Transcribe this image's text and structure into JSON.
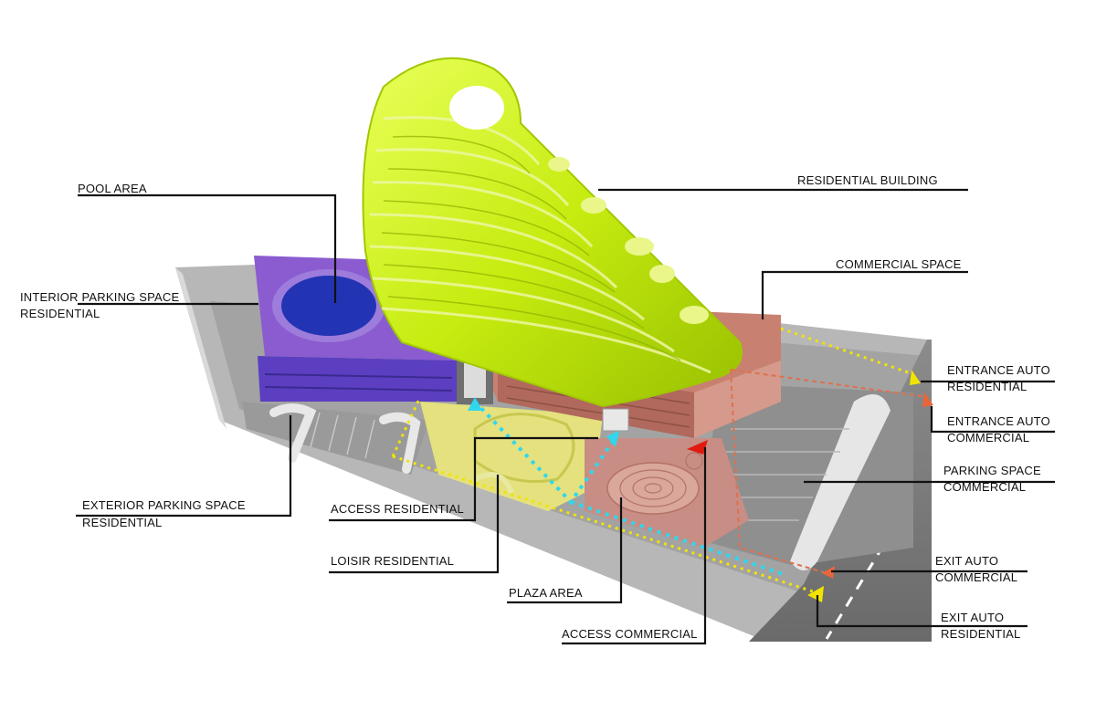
{
  "labels": {
    "pool_area": "POOL AREA",
    "interior_parking_1": "INTERIOR PARKING SPACE",
    "interior_parking_2": "RESIDENTIAL",
    "exterior_parking_1": "EXTERIOR PARKING SPACE",
    "exterior_parking_2": "RESIDENTIAL",
    "access_residential": "ACCESS RESIDENTIAL",
    "loisir_residential": "LOISIR RESIDENTIAL",
    "plaza_area": "PLAZA AREA",
    "access_commercial": "ACCESS COMMERCIAL",
    "residential_building": "RESIDENTIAL BUILDING",
    "commercial_space": "COMMERCIAL SPACE",
    "entrance_auto_residential_1": "ENTRANCE AUTO",
    "entrance_auto_residential_2": "RESIDENTIAL",
    "entrance_auto_commercial_1": "ENTRANCE AUTO",
    "entrance_auto_commercial_2": "COMMERCIAL",
    "parking_space_commercial_1": "PARKING SPACE",
    "parking_space_commercial_2": "COMMERCIAL",
    "exit_auto_commercial_1": "EXIT AUTO",
    "exit_auto_commercial_2": "COMMERCIAL",
    "exit_auto_residential_1": "EXIT AUTO",
    "exit_auto_residential_2": "RESIDENTIAL"
  },
  "colors": {
    "tower": "#c8f000",
    "pool_block": "#7c4fc4",
    "pool_water": "#2638b0",
    "commercial_block": "#c98a7a",
    "plaza": "#c98f86",
    "loisir": "#e3e07a",
    "parking": "#9a9a9a",
    "road": "#7d7d7d",
    "residential_path": "#f0e000",
    "access_path": "#30d8f0",
    "commercial_arrow": "#e8663a"
  }
}
